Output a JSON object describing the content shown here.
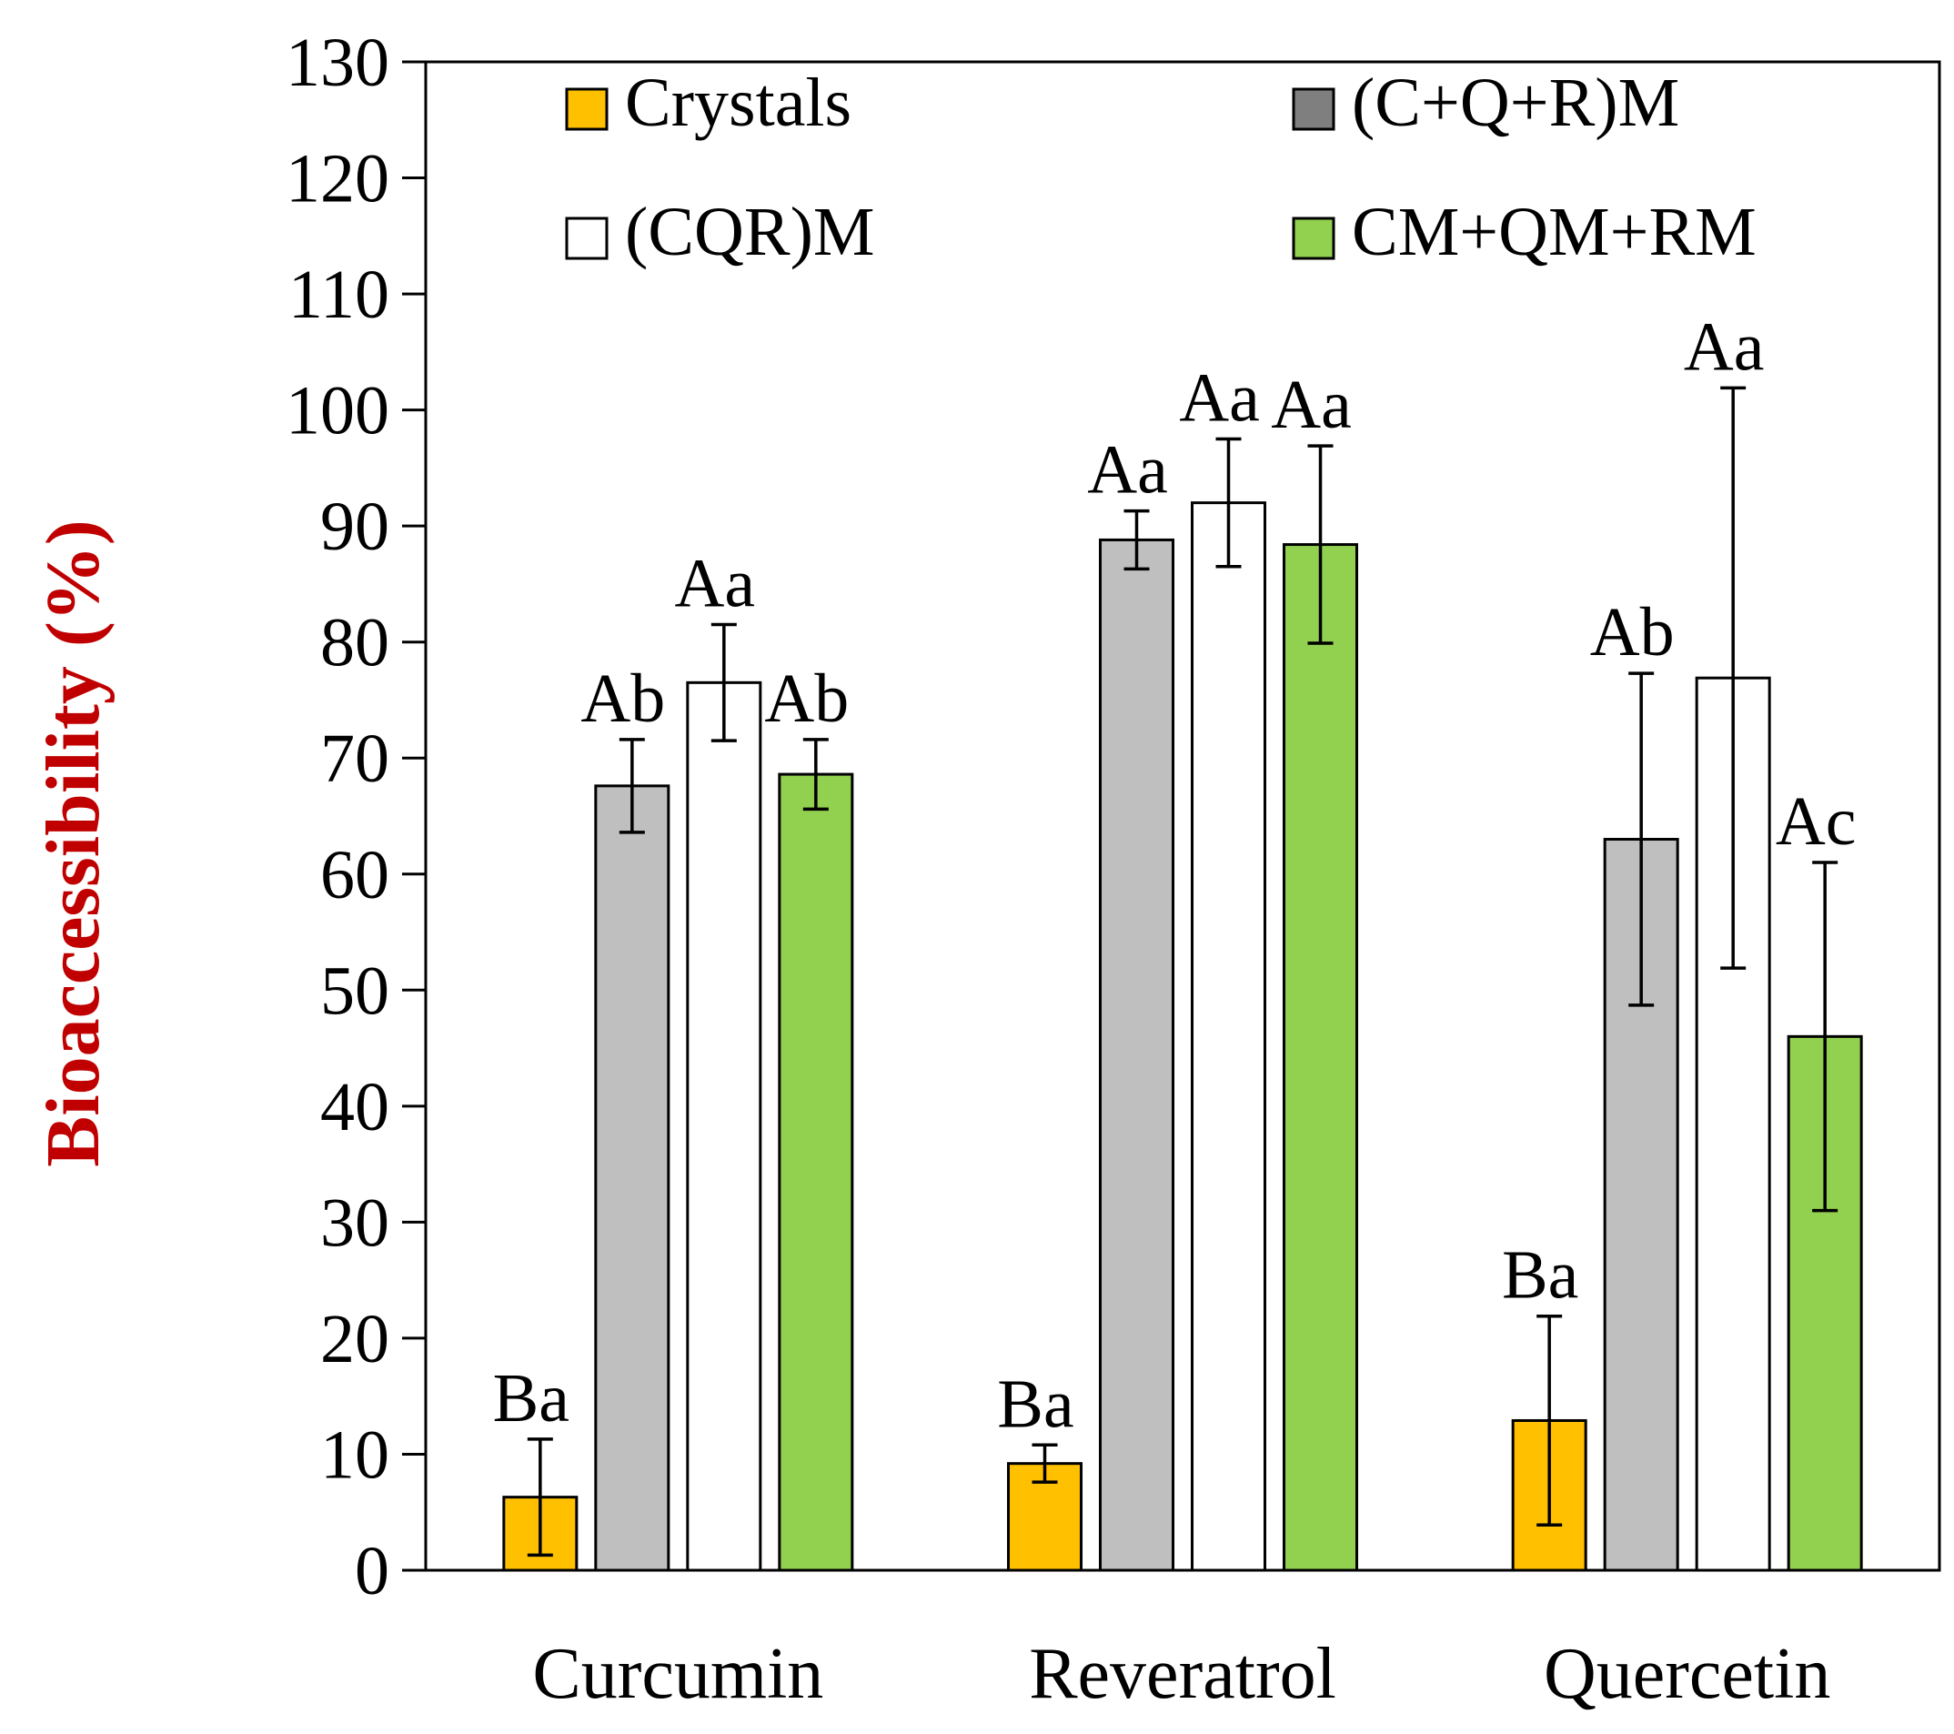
{
  "chart_data": {
    "type": "bar",
    "title": "",
    "xlabel": "",
    "ylabel": "Bioaccessibility (%)",
    "ylabel_color": "#c00000",
    "ylim": [
      0,
      130
    ],
    "yticks": [
      0,
      10,
      20,
      30,
      40,
      50,
      60,
      70,
      80,
      90,
      100,
      110,
      120,
      130
    ],
    "grid": false,
    "legend_position": "top",
    "categories": [
      "Curcumin",
      "Reveratrol",
      "Quercetin"
    ],
    "series": [
      {
        "name": "Crystals",
        "legend_color": "#ffc000",
        "color": "#ffc000",
        "values": [
          6.3,
          9.2,
          12.9
        ],
        "errors": [
          5.0,
          1.6,
          9.0
        ],
        "labels": [
          "Ba",
          "Ba",
          "Ba"
        ]
      },
      {
        "name": "(C+Q+R)M",
        "legend_color": "#7f7f7f",
        "color": "#bfbfbf",
        "values": [
          67.6,
          88.8,
          63.0
        ],
        "errors": [
          4.0,
          2.5,
          14.3
        ],
        "labels": [
          "Ab",
          "Aa",
          "Ab"
        ]
      },
      {
        "name": "(CQR)M",
        "legend_color": "#ffffff",
        "color": "#ffffff",
        "values": [
          76.5,
          92.0,
          76.9
        ],
        "errors": [
          5.0,
          5.5,
          25.0
        ],
        "labels": [
          "Aa",
          "Aa",
          "Aa"
        ]
      },
      {
        "name": "CM+QM+RM",
        "legend_color": "#92d050",
        "color": "#92d050",
        "values": [
          68.6,
          88.4,
          46.0
        ],
        "errors": [
          3.0,
          8.5,
          15.0
        ],
        "labels": [
          "Ab",
          "Aa",
          "Ac"
        ]
      }
    ]
  }
}
